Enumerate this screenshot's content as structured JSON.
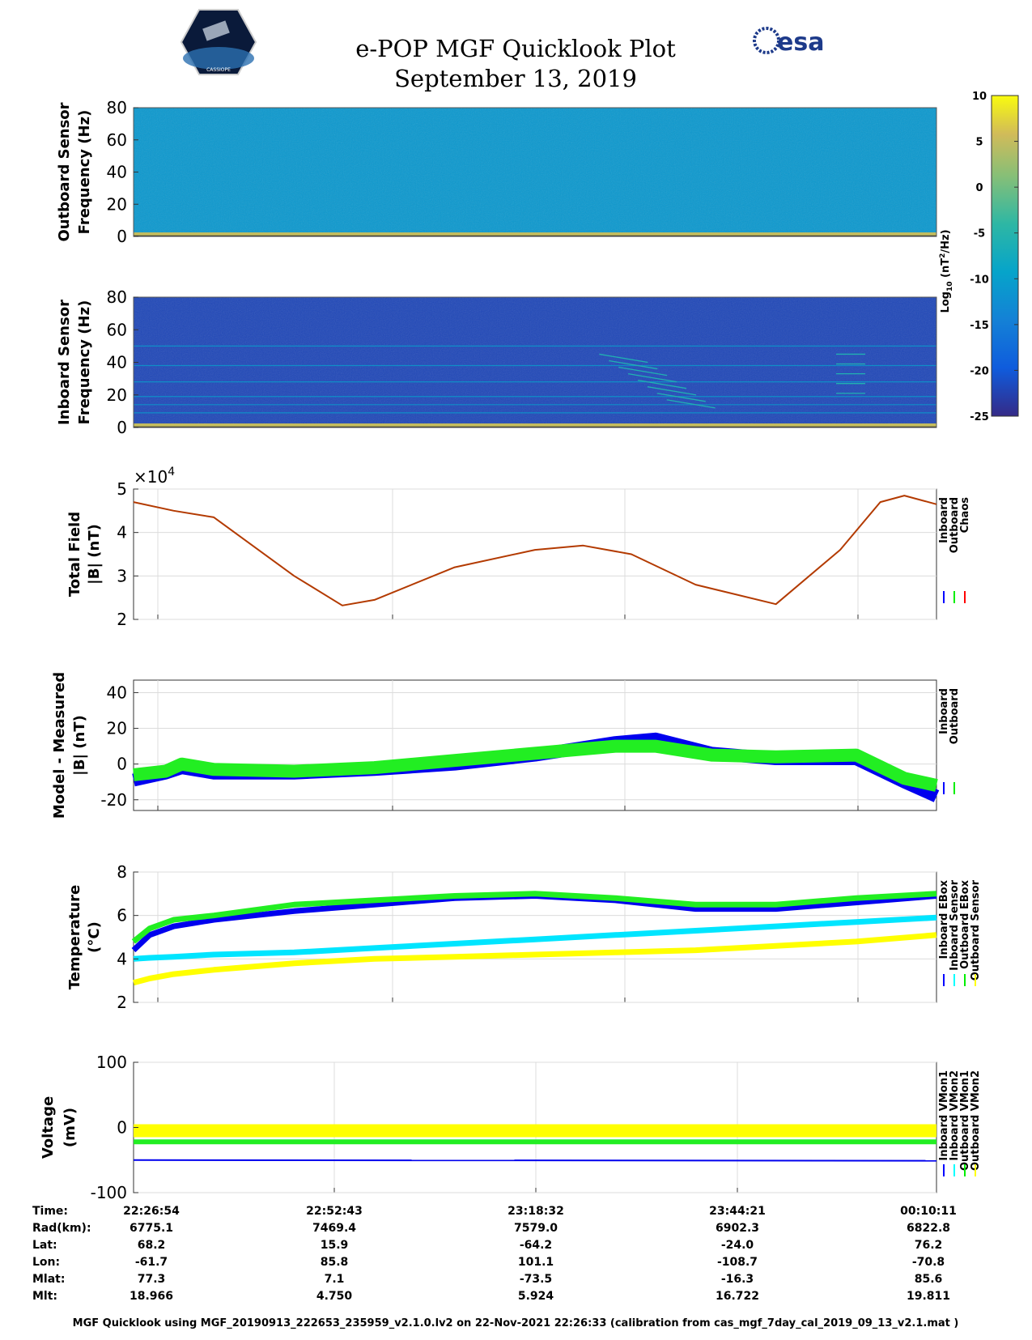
{
  "header": {
    "title": "e-POP MGF Quicklook Plot",
    "date": "September 13, 2019",
    "esa_logo_text": "esa",
    "mission_logo_text": "CASSIOPE"
  },
  "colorbar": {
    "label_main": "Log",
    "label_sub": "10",
    "label_unit": "(nT",
    "label_sup": "2",
    "label_tail": "/Hz)",
    "ticks": [
      "10",
      "5",
      "0",
      "-5",
      "-10",
      "-15",
      "-20",
      "-25"
    ]
  },
  "footer": {
    "caption": "MGF Quicklook using MGF_20190913_222653_235959_v2.1.0.lv2 on 22-Nov-2021 22:26:33 (calibration from cas_mgf_7day_cal_2019_09_13_v2.1.mat )"
  },
  "ephemeris": {
    "row_labels": [
      "Time:",
      "Rad(km):",
      "Lat:",
      "Lon:",
      "Mlat:",
      "Mlt:"
    ],
    "columns": [
      [
        "22:26:54",
        "6775.1",
        "68.2",
        "-61.7",
        "77.3",
        "18.966"
      ],
      [
        "22:52:43",
        "7469.4",
        "15.9",
        "85.8",
        "7.1",
        "4.750"
      ],
      [
        "23:18:32",
        "7579.0",
        "-64.2",
        "101.1",
        "-73.5",
        "5.924"
      ],
      [
        "23:44:21",
        "6902.3",
        "-24.0",
        "-108.7",
        "-16.3",
        "16.722"
      ],
      [
        "00:10:11",
        "6822.8",
        "76.2",
        "-70.8",
        "85.6",
        "19.811"
      ]
    ]
  },
  "chart_data": [
    {
      "type": "heatmap",
      "id": "outboard-spectrogram",
      "ylabel_line1": "Outboard Sensor",
      "ylabel_line2": "Frequency (Hz)",
      "yticks": [
        "80",
        "60",
        "40",
        "20",
        "0"
      ],
      "ylim": [
        0,
        80
      ],
      "colormap": "parula",
      "clim": [
        -25,
        10
      ],
      "background_level": -11,
      "low_freq_band_level": 5
    },
    {
      "type": "heatmap",
      "id": "inboard-spectrogram",
      "ylabel_line1": "Inboard Sensor",
      "ylabel_line2": "Frequency (Hz)",
      "yticks": [
        "80",
        "60",
        "40",
        "20",
        "0"
      ],
      "ylim": [
        0,
        80
      ],
      "colormap": "parula",
      "clim": [
        -25,
        10
      ],
      "background_level": -22,
      "harmonic_lines_hz": [
        9,
        14,
        19,
        28,
        38,
        50
      ],
      "low_freq_band_level": 5
    },
    {
      "type": "line",
      "id": "total-field",
      "ylabel_line1": "Total Field",
      "ylabel_line2": "|B| (nT)",
      "exponent_base": "×10",
      "exponent_power": "4",
      "yticks": [
        "5",
        "4",
        "3",
        "2"
      ],
      "ylim": [
        2,
        5
      ],
      "legend": [
        "Inboard",
        "Outboard",
        "Chaos"
      ],
      "legend_colors": [
        "#0000ff",
        "#00ee00",
        "#ff0000"
      ],
      "x": [
        0,
        0.05,
        0.1,
        0.2,
        0.26,
        0.3,
        0.4,
        0.5,
        0.56,
        0.62,
        0.7,
        0.8,
        0.88,
        0.93,
        0.96,
        1.0
      ],
      "series": [
        {
          "name": "Chaos",
          "color": "#b33a00",
          "values": [
            4.7,
            4.5,
            4.35,
            3.0,
            2.32,
            2.45,
            3.2,
            3.6,
            3.7,
            3.5,
            2.8,
            2.35,
            3.6,
            4.7,
            4.85,
            4.65
          ]
        }
      ]
    },
    {
      "type": "line",
      "id": "model-minus-measured",
      "ylabel_line1": "Model - Measured",
      "ylabel_line2": "|B| (nT)",
      "yticks": [
        "40",
        "20",
        "0",
        "-20"
      ],
      "ylim": [
        -26,
        47
      ],
      "legend": [
        "Inboard",
        "Outboard"
      ],
      "legend_colors": [
        "#0000ff",
        "#00ee00"
      ],
      "x": [
        0,
        0.04,
        0.06,
        0.1,
        0.2,
        0.3,
        0.4,
        0.5,
        0.6,
        0.65,
        0.72,
        0.8,
        0.9,
        0.96,
        1.0
      ],
      "series": [
        {
          "name": "Inboard",
          "color": "#0000ee",
          "values": [
            -9,
            -5,
            -2,
            -5,
            -5,
            -3,
            0,
            5,
            12,
            14,
            6,
            3,
            3,
            -10,
            -18
          ]
        },
        {
          "name": "Outboard",
          "color": "#22ee22",
          "values": [
            -6,
            -4,
            0,
            -3,
            -4,
            -2,
            2,
            6,
            10,
            10,
            5,
            4,
            5,
            -8,
            -12
          ]
        }
      ]
    },
    {
      "type": "line",
      "id": "temperature",
      "ylabel_line1": "Temperature",
      "ylabel_line2": "(°C)",
      "yticks": [
        "8",
        "6",
        "4",
        "2"
      ],
      "ylim": [
        2,
        8
      ],
      "legend": [
        "Inboard EBox",
        "Inboard Sensor",
        "Outboard EBox",
        "Outboard Sensor"
      ],
      "legend_colors": [
        "#0000ff",
        "#00ffff",
        "#00ee00",
        "#ffff00"
      ],
      "x": [
        0,
        0.02,
        0.05,
        0.1,
        0.2,
        0.3,
        0.4,
        0.5,
        0.6,
        0.7,
        0.8,
        0.9,
        1.0
      ],
      "series": [
        {
          "name": "Inboard EBox",
          "color": "#0000ee",
          "values": [
            4.4,
            5.1,
            5.5,
            5.8,
            6.2,
            6.5,
            6.8,
            6.9,
            6.7,
            6.3,
            6.3,
            6.6,
            6.9
          ]
        },
        {
          "name": "Outboard EBox",
          "color": "#22ee22",
          "values": [
            4.8,
            5.4,
            5.8,
            6.0,
            6.5,
            6.7,
            6.9,
            7.0,
            6.8,
            6.5,
            6.5,
            6.8,
            7.0
          ]
        },
        {
          "name": "Inboard Sensor",
          "color": "#00e5ff",
          "values": [
            4.0,
            4.05,
            4.1,
            4.2,
            4.3,
            4.5,
            4.7,
            4.9,
            5.1,
            5.3,
            5.5,
            5.7,
            5.9
          ]
        },
        {
          "name": "Outboard Sensor",
          "color": "#ffff00",
          "values": [
            2.9,
            3.1,
            3.3,
            3.5,
            3.8,
            4.0,
            4.1,
            4.2,
            4.3,
            4.4,
            4.6,
            4.8,
            5.1
          ]
        }
      ]
    },
    {
      "type": "line",
      "id": "voltage",
      "ylabel_line1": "Voltage",
      "ylabel_line2": "(mV)",
      "yticks": [
        "100",
        "0",
        "-100"
      ],
      "ylim": [
        -100,
        100
      ],
      "legend": [
        "Inboard VMon1",
        "Inboard VMon2",
        "Outboard VMon1",
        "Outboard VMon2"
      ],
      "legend_colors": [
        "#0000ff",
        "#00ffff",
        "#00ee00",
        "#ffff00"
      ],
      "x": [
        0,
        1
      ],
      "series": [
        {
          "name": "Inboard VMon1",
          "color": "#0000ee",
          "values": [
            -50,
            -51
          ]
        },
        {
          "name": "Outboard VMon1",
          "color": "#22ee22",
          "values": [
            -22,
            -22
          ]
        },
        {
          "name": "Outboard VMon2",
          "color": "#ffff00",
          "values": [
            -5,
            -5
          ]
        }
      ]
    }
  ]
}
